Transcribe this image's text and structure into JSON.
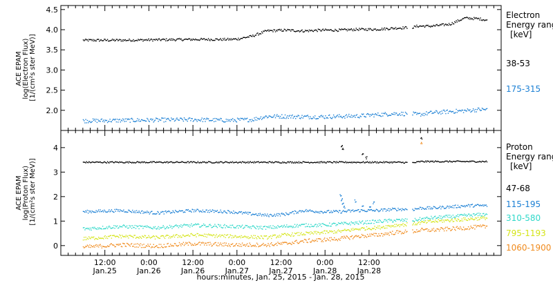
{
  "chart_data": [
    {
      "type": "scatter",
      "ylabel_lines": [
        "ACE EPAM",
        "log(Electron Flux)",
        "[1/(cm²s ster MeV)]"
      ],
      "legend_title": [
        "Electron",
        "Energy ranges",
        "[keV]"
      ],
      "ylim": [
        1.5,
        4.6
      ],
      "yticks": [
        {
          "value": 2.0,
          "label": "2.0"
        },
        {
          "value": 2.5,
          "label": "2.5"
        },
        {
          "value": 3.0,
          "label": "3.0"
        },
        {
          "value": 3.5,
          "label": "3.5"
        },
        {
          "value": 4.0,
          "label": "4.0"
        },
        {
          "value": 4.5,
          "label": "4.5"
        }
      ],
      "series": [
        {
          "name": "38-53",
          "color": "#000000",
          "noise": 0.03,
          "x": [
            0,
            10,
            20,
            30,
            40,
            42,
            46,
            50,
            55,
            60,
            65,
            70,
            75,
            80,
            85,
            90,
            91,
            95,
            100,
            104,
            108,
            110
          ],
          "values": [
            3.75,
            3.75,
            3.76,
            3.77,
            3.77,
            3.78,
            3.85,
            3.98,
            4.0,
            3.98,
            4.0,
            4.0,
            4.02,
            4.02,
            4.05,
            4.07,
            4.1,
            4.1,
            4.15,
            4.3,
            4.28,
            4.25
          ]
        },
        {
          "name": "175-315",
          "color": "#1a7fd4",
          "noise": 0.05,
          "x": [
            0,
            10,
            20,
            30,
            40,
            42,
            46,
            50,
            55,
            60,
            65,
            70,
            75,
            80,
            85,
            90,
            91,
            95,
            100,
            104,
            108,
            110
          ],
          "values": [
            1.75,
            1.76,
            1.77,
            1.78,
            1.76,
            1.77,
            1.78,
            1.86,
            1.86,
            1.85,
            1.85,
            1.86,
            1.87,
            1.9,
            1.93,
            1.92,
            1.9,
            1.95,
            1.98,
            2.0,
            2.03,
            2.03
          ]
        }
      ]
    },
    {
      "type": "scatter",
      "ylabel_lines": [
        "ACE EPAM",
        "log(Proton Flux)",
        "[1/(cm²s ster MeV)]"
      ],
      "legend_title": [
        "Proton",
        "Energy ranges",
        "[keV]"
      ],
      "ylim": [
        -0.4,
        4.7
      ],
      "yticks": [
        {
          "value": 0,
          "label": "0"
        },
        {
          "value": 1,
          "label": "1"
        },
        {
          "value": 2,
          "label": "2"
        },
        {
          "value": 3,
          "label": "3"
        },
        {
          "value": 4,
          "label": "4"
        }
      ],
      "series": [
        {
          "name": "47-68",
          "color": "#000000",
          "noise": 0.03,
          "x": [
            0,
            10,
            20,
            30,
            40,
            50,
            55,
            60,
            65,
            70,
            75,
            80,
            85,
            90,
            92,
            95,
            100,
            105,
            110
          ],
          "values": [
            3.42,
            3.42,
            3.42,
            3.42,
            3.42,
            3.42,
            3.42,
            3.42,
            3.42,
            3.42,
            3.42,
            3.42,
            3.42,
            3.4,
            3.45,
            3.45,
            3.45,
            3.45,
            3.45
          ]
        },
        {
          "name": "115-195",
          "color": "#1a7fd4",
          "noise": 0.06,
          "x": [
            0,
            10,
            20,
            30,
            40,
            50,
            55,
            60,
            65,
            70,
            75,
            80,
            85,
            90,
            92,
            95,
            100,
            105,
            110
          ],
          "values": [
            1.4,
            1.45,
            1.35,
            1.45,
            1.4,
            1.25,
            1.3,
            1.45,
            1.4,
            1.4,
            1.45,
            1.45,
            1.5,
            1.5,
            1.55,
            1.55,
            1.6,
            1.65,
            1.65
          ]
        },
        {
          "name": "310-580",
          "color": "#2fd8c9",
          "noise": 0.07,
          "x": [
            0,
            10,
            20,
            30,
            40,
            50,
            55,
            60,
            65,
            70,
            75,
            80,
            85,
            90,
            92,
            95,
            100,
            105,
            110
          ],
          "values": [
            0.7,
            0.8,
            0.75,
            0.85,
            0.8,
            0.75,
            0.8,
            0.85,
            0.85,
            0.9,
            0.95,
            1.0,
            1.05,
            1.05,
            1.1,
            1.15,
            1.2,
            1.25,
            1.3
          ]
        },
        {
          "name": "795-1193",
          "color": "#d4e417",
          "noise": 0.07,
          "x": [
            0,
            10,
            20,
            30,
            40,
            50,
            55,
            60,
            65,
            70,
            75,
            80,
            85,
            90,
            92,
            95,
            100,
            105,
            110
          ],
          "values": [
            0.3,
            0.4,
            0.35,
            0.45,
            0.4,
            0.35,
            0.45,
            0.5,
            0.55,
            0.6,
            0.7,
            0.75,
            0.85,
            0.9,
            0.95,
            1.0,
            1.05,
            1.1,
            1.15
          ]
        },
        {
          "name": "1060-1900",
          "color": "#f08a1c",
          "noise": 0.08,
          "x": [
            0,
            10,
            20,
            30,
            40,
            50,
            55,
            60,
            65,
            70,
            75,
            80,
            85,
            90,
            92,
            95,
            100,
            105,
            110
          ],
          "values": [
            -0.05,
            0.05,
            0.0,
            0.1,
            0.05,
            0.05,
            0.1,
            0.2,
            0.25,
            0.3,
            0.4,
            0.45,
            0.55,
            0.6,
            0.65,
            0.65,
            0.7,
            0.75,
            0.8
          ]
        }
      ],
      "spikes": [
        {
          "series": 0,
          "x": [
            70.3,
            70.6,
            76,
            77,
            92
          ],
          "values": [
            4.05,
            3.95,
            3.75,
            3.6,
            4.4
          ]
        },
        {
          "series": 1,
          "x": [
            70.0,
            70.3,
            70.6,
            71.0,
            74,
            76,
            78,
            79
          ],
          "values": [
            2.1,
            1.9,
            1.7,
            1.6,
            1.85,
            1.65,
            1.55,
            1.75
          ]
        },
        {
          "series": 4,
          "x": [
            92
          ],
          "values": [
            4.2
          ]
        }
      ]
    }
  ],
  "x_axis": {
    "xlim": [
      -6,
      114
    ],
    "ticks": [
      {
        "x": 6,
        "time": "12:00",
        "date": "Jan.25"
      },
      {
        "x": 18,
        "time": "0:00",
        "date": "Jan.26"
      },
      {
        "x": 30,
        "time": "12:00",
        "date": "Jan.26"
      },
      {
        "x": 42,
        "time": "0:00",
        "date": "Jan.27"
      },
      {
        "x": 54,
        "time": "12:00",
        "date": "Jan.27"
      },
      {
        "x": 66,
        "time": "0:00",
        "date": "Jan.28"
      },
      {
        "x": 78,
        "time": "12:00",
        "date": "Jan.28"
      }
    ],
    "title": "hours:minutes, Jan. 25, 2015 - Jan. 28, 2015"
  }
}
